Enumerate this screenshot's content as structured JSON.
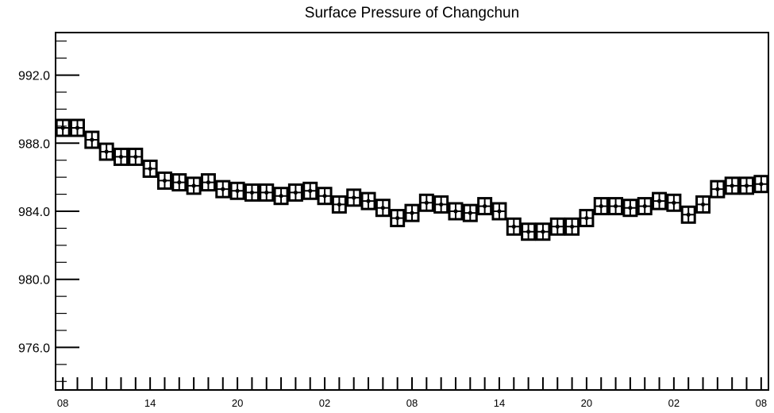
{
  "chart_data": {
    "type": "scatter",
    "title": "Surface Pressure of Changchun",
    "xlabel": "",
    "ylabel": "",
    "ylim": [
      973.5,
      994.5
    ],
    "yticks": [
      976.0,
      980.0,
      984.0,
      988.0,
      992.0
    ],
    "ytick_labels": [
      "976.0",
      "980.0",
      "984.0",
      "988.0",
      "992.0"
    ],
    "xlim": [
      -0.5,
      48.5
    ],
    "xticks": [
      0,
      6,
      12,
      18,
      24,
      30,
      36,
      42,
      48
    ],
    "xtick_labels": [
      "08",
      "14",
      "20",
      "02",
      "08",
      "14",
      "20",
      "02",
      "08"
    ],
    "grid": false,
    "marker": "boxed-plus",
    "x": [
      0,
      1,
      2,
      3,
      4,
      5,
      6,
      7,
      8,
      9,
      10,
      11,
      12,
      13,
      14,
      15,
      16,
      17,
      18,
      19,
      20,
      21,
      22,
      23,
      24,
      25,
      26,
      27,
      28,
      29,
      30,
      31,
      32,
      33,
      34,
      35,
      36,
      37,
      38,
      39,
      40,
      41,
      42,
      43,
      44,
      45,
      46,
      47,
      48
    ],
    "values": [
      988.9,
      988.9,
      988.2,
      987.5,
      987.2,
      987.2,
      986.5,
      985.8,
      985.7,
      985.5,
      985.7,
      985.3,
      985.2,
      985.1,
      985.1,
      984.9,
      985.1,
      985.2,
      984.9,
      984.4,
      984.8,
      984.6,
      984.2,
      983.6,
      983.9,
      984.5,
      984.4,
      984.0,
      983.9,
      984.3,
      984.0,
      983.1,
      982.8,
      982.8,
      983.1,
      983.1,
      983.6,
      984.3,
      984.3,
      984.2,
      984.3,
      984.6,
      984.5,
      983.8,
      984.4,
      985.3,
      985.5,
      985.5,
      985.6
    ]
  }
}
